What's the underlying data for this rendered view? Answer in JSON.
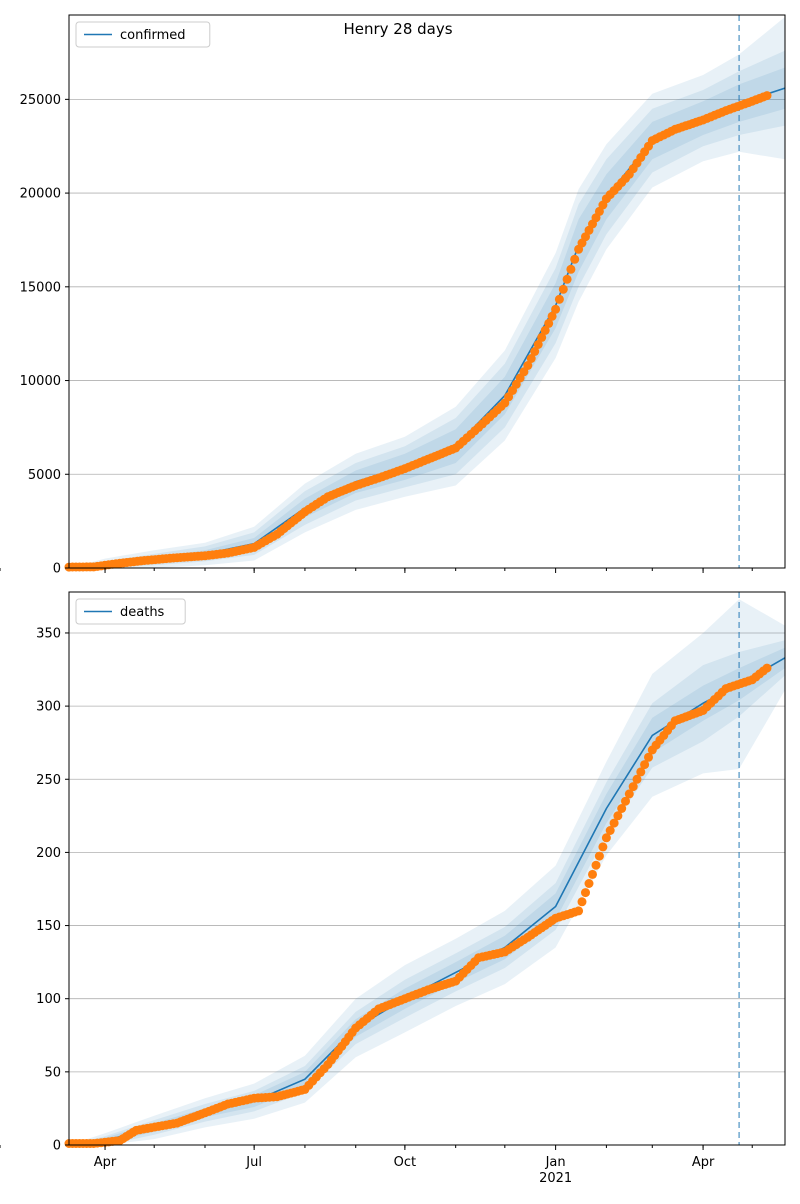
{
  "figure": {
    "title": "Henry 28 days"
  },
  "chart_data": [
    {
      "type": "line",
      "legend": "confirmed",
      "legend_position": "top-left",
      "grid": "horizontal",
      "ylim": [
        0,
        29500
      ],
      "yticks": [
        0,
        5000,
        10000,
        15000,
        20000,
        25000
      ],
      "xlim": [
        "2020-03-10",
        "2021-05-21"
      ],
      "xticks": [
        {
          "date": "2020-04-01",
          "label": "Apr",
          "sublabel": ""
        },
        {
          "date": "2020-07-01",
          "label": "Jul",
          "sublabel": ""
        },
        {
          "date": "2020-10-01",
          "label": "Oct",
          "sublabel": ""
        },
        {
          "date": "2021-01-01",
          "label": "Jan",
          "sublabel": ""
        },
        {
          "date": "2021-04-01",
          "label": "Apr",
          "sublabel": ""
        }
      ],
      "forecast_start": "2021-04-23",
      "colors": {
        "model": "#1f77b4",
        "observed": "#ff7f0e",
        "band": "#1f77b4"
      },
      "model": {
        "x": [
          "2020-03-10",
          "2020-04-01",
          "2020-05-01",
          "2020-06-01",
          "2020-07-01",
          "2020-08-01",
          "2020-09-01",
          "2020-10-01",
          "2020-11-01",
          "2020-12-01",
          "2021-01-01",
          "2021-01-15",
          "2021-02-01",
          "2021-03-01",
          "2021-04-01",
          "2021-04-23",
          "2021-05-21"
        ],
        "y": [
          0,
          150,
          450,
          750,
          1300,
          3200,
          4600,
          5400,
          6500,
          9200,
          14000,
          17200,
          19800,
          22800,
          24000,
          24800,
          25600
        ],
        "band_halfwidths": [
          [
            0,
            100,
            150,
            200,
            300,
            500,
            600,
            700,
            900,
            1000,
            1200,
            1400,
            1200,
            1000,
            900,
            1000,
            1100
          ],
          [
            0,
            200,
            300,
            400,
            600,
            900,
            1000,
            1100,
            1500,
            1700,
            2000,
            2200,
            2000,
            1700,
            1500,
            1700,
            2000
          ],
          [
            0,
            350,
            500,
            600,
            900,
            1300,
            1500,
            1600,
            2100,
            2400,
            2800,
            3000,
            2800,
            2500,
            2300,
            2600,
            3800
          ]
        ]
      },
      "observed": {
        "x": [
          "2020-03-10",
          "2020-03-25",
          "2020-04-10",
          "2020-04-25",
          "2020-05-15",
          "2020-06-01",
          "2020-06-15",
          "2020-07-01",
          "2020-07-15",
          "2020-08-01",
          "2020-08-15",
          "2020-09-01",
          "2020-09-15",
          "2020-10-01",
          "2020-10-15",
          "2020-11-01",
          "2020-11-15",
          "2020-12-01",
          "2020-12-15",
          "2021-01-01",
          "2021-01-15",
          "2021-02-01",
          "2021-02-15",
          "2021-03-01",
          "2021-03-15",
          "2021-04-01",
          "2021-04-15",
          "2021-05-01",
          "2021-05-10"
        ],
        "y": [
          50,
          60,
          250,
          400,
          550,
          650,
          800,
          1100,
          1800,
          3000,
          3800,
          4400,
          4800,
          5300,
          5800,
          6400,
          7500,
          8800,
          10800,
          13800,
          17000,
          19700,
          21000,
          22800,
          23400,
          23900,
          24400,
          24900,
          25200
        ]
      }
    },
    {
      "type": "line",
      "legend": "deaths",
      "legend_position": "top-left",
      "grid": "horizontal",
      "ylim": [
        0,
        378
      ],
      "yticks": [
        0,
        50,
        100,
        150,
        200,
        250,
        300,
        350
      ],
      "xlim": [
        "2020-03-10",
        "2021-05-21"
      ],
      "xticks": [
        {
          "date": "2020-04-01",
          "label": "Apr",
          "sublabel": ""
        },
        {
          "date": "2020-07-01",
          "label": "Jul",
          "sublabel": ""
        },
        {
          "date": "2020-10-01",
          "label": "Oct",
          "sublabel": ""
        },
        {
          "date": "2021-01-01",
          "label": "Jan",
          "sublabel": "2021"
        },
        {
          "date": "2021-04-01",
          "label": "Apr",
          "sublabel": ""
        }
      ],
      "forecast_start": "2021-04-23",
      "colors": {
        "model": "#1f77b4",
        "observed": "#ff7f0e",
        "band": "#1f77b4"
      },
      "model": {
        "x": [
          "2020-03-10",
          "2020-04-01",
          "2020-05-01",
          "2020-06-01",
          "2020-07-01",
          "2020-08-01",
          "2020-09-01",
          "2020-10-01",
          "2020-11-01",
          "2020-12-01",
          "2021-01-01",
          "2021-02-01",
          "2021-03-01",
          "2021-04-01",
          "2021-04-23",
          "2021-05-21"
        ],
        "y": [
          0,
          3,
          12,
          22,
          30,
          45,
          80,
          100,
          118,
          135,
          163,
          230,
          280,
          302,
          315,
          333
        ],
        "band_halfwidths": [
          [
            0,
            2,
            3,
            3,
            4,
            5,
            6,
            7,
            7,
            8,
            9,
            10,
            12,
            12,
            11,
            7
          ],
          [
            0,
            3,
            5,
            6,
            7,
            9,
            11,
            13,
            13,
            14,
            16,
            18,
            22,
            26,
            22,
            12
          ],
          [
            0,
            5,
            8,
            10,
            12,
            16,
            20,
            23,
            23,
            25,
            28,
            32,
            42,
            48,
            58,
            22
          ]
        ]
      },
      "observed": {
        "x": [
          "2020-03-10",
          "2020-03-25",
          "2020-04-10",
          "2020-04-20",
          "2020-05-15",
          "2020-06-01",
          "2020-06-15",
          "2020-07-01",
          "2020-07-15",
          "2020-08-01",
          "2020-08-15",
          "2020-09-01",
          "2020-09-15",
          "2020-10-01",
          "2020-10-15",
          "2020-11-01",
          "2020-11-15",
          "2020-12-01",
          "2020-12-15",
          "2021-01-01",
          "2021-01-15",
          "2021-02-01",
          "2021-02-15",
          "2021-03-01",
          "2021-03-15",
          "2021-04-01",
          "2021-04-15",
          "2021-05-01",
          "2021-05-10"
        ],
        "y": [
          1,
          1,
          3,
          10,
          15,
          22,
          28,
          32,
          33,
          38,
          55,
          80,
          93,
          100,
          106,
          112,
          128,
          132,
          142,
          155,
          160,
          210,
          240,
          270,
          290,
          297,
          312,
          318,
          326
        ]
      }
    }
  ]
}
